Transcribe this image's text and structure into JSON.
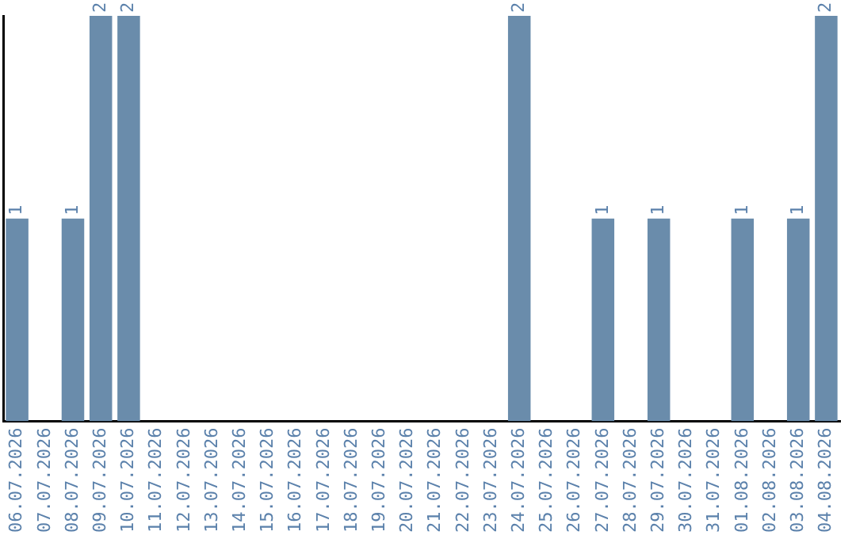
{
  "chart_data": {
    "type": "bar",
    "categories": [
      "06.07.2026",
      "07.07.2026",
      "08.07.2026",
      "09.07.2026",
      "10.07.2026",
      "11.07.2026",
      "12.07.2026",
      "13.07.2026",
      "14.07.2026",
      "15.07.2026",
      "16.07.2026",
      "17.07.2026",
      "18.07.2026",
      "19.07.2026",
      "20.07.2026",
      "21.07.2026",
      "22.07.2026",
      "23.07.2026",
      "24.07.2026",
      "25.07.2026",
      "26.07.2026",
      "27.07.2026",
      "28.07.2026",
      "29.07.2026",
      "30.07.2026",
      "31.07.2026",
      "01.08.2026",
      "02.08.2026",
      "03.08.2026",
      "04.08.2026"
    ],
    "values": [
      1,
      0,
      1,
      2,
      2,
      0,
      0,
      0,
      0,
      0,
      0,
      0,
      0,
      0,
      0,
      0,
      0,
      0,
      2,
      0,
      0,
      1,
      0,
      1,
      0,
      0,
      1,
      0,
      1,
      2
    ],
    "value_labels": [
      "1",
      null,
      "1",
      "2",
      "2",
      null,
      null,
      null,
      null,
      null,
      null,
      null,
      null,
      null,
      null,
      null,
      null,
      null,
      "2",
      null,
      null,
      "1",
      null,
      "1",
      null,
      null,
      "1",
      null,
      "1",
      "2"
    ],
    "color": "#6a8cab",
    "ylim": [
      0,
      2
    ],
    "tick_labels": "x",
    "grid": false
  }
}
